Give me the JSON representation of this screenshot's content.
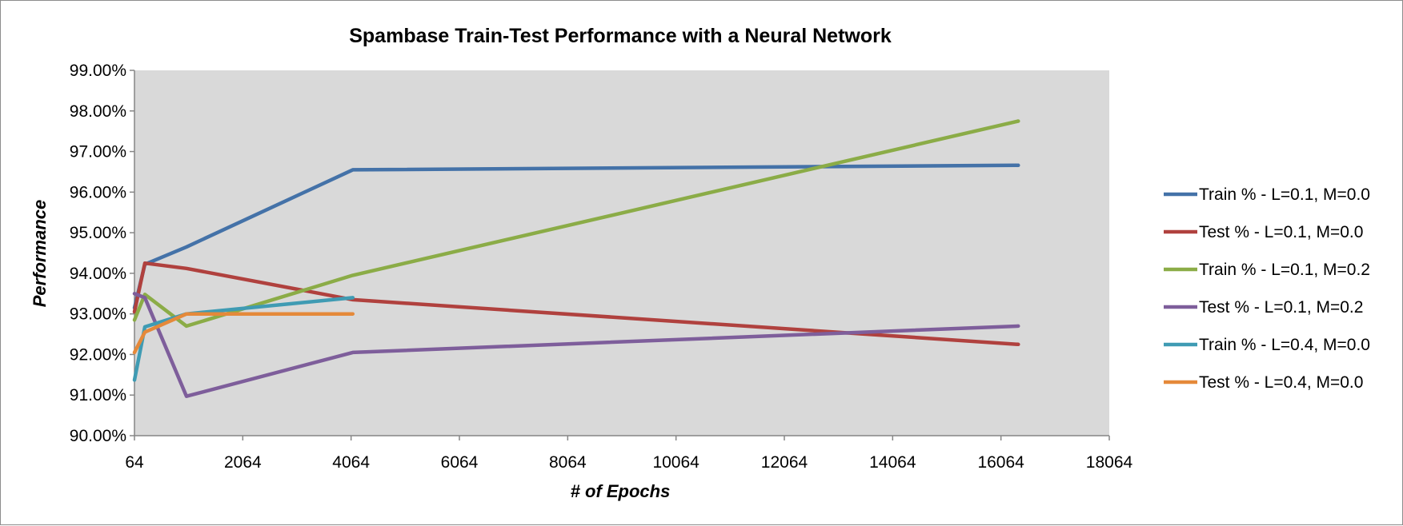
{
  "chart_data": {
    "type": "line",
    "title": "Spambase Train-Test Performance with a Neural Network",
    "xlabel": "# of Epochs",
    "ylabel": "Performance",
    "xlim": [
      64,
      18064
    ],
    "ylim": [
      0.9,
      0.99
    ],
    "xticks": [
      "64",
      "2064",
      "4064",
      "6064",
      "8064",
      "10064",
      "12064",
      "14064",
      "16064",
      "18064"
    ],
    "yticks": [
      "90.00%",
      "91.00%",
      "92.00%",
      "93.00%",
      "94.00%",
      "95.00%",
      "96.00%",
      "97.00%",
      "98.00%",
      "99.00%"
    ],
    "x": [
      64,
      256,
      1024,
      4096,
      16384
    ],
    "grid": false,
    "plot_background": "#d9d9d9",
    "legend_position": "right",
    "series": [
      {
        "name": "Train % - L=0.1, M=0.0",
        "color": "#4472a8",
        "x": [
          64,
          256,
          1024,
          4096,
          16384
        ],
        "values": [
          0.9315,
          0.9422,
          0.9465,
          0.9655,
          0.9666
        ]
      },
      {
        "name": "Test % - L=0.1, M=0.0",
        "color": "#b0413e",
        "x": [
          64,
          256,
          1024,
          4096,
          16384
        ],
        "values": [
          0.9305,
          0.9425,
          0.9412,
          0.9335,
          0.9225
        ]
      },
      {
        "name": "Train % - L=0.1, M=0.2",
        "color": "#8bac47",
        "x": [
          64,
          256,
          1024,
          4096,
          16384
        ],
        "values": [
          0.9285,
          0.9348,
          0.927,
          0.9395,
          0.9775
        ]
      },
      {
        "name": "Test % - L=0.1, M=0.2",
        "color": "#7e5e9b",
        "x": [
          64,
          256,
          1024,
          4096,
          16384
        ],
        "values": [
          0.935,
          0.934,
          0.9097,
          0.9205,
          0.927
        ]
      },
      {
        "name": "Train % - L=0.4, M=0.0",
        "color": "#3f9bb3",
        "x": [
          64,
          256,
          1024,
          4096
        ],
        "values": [
          0.9137,
          0.9268,
          0.93,
          0.934
        ]
      },
      {
        "name": "Test % - L=0.4, M=0.0",
        "color": "#e5893a",
        "x": [
          64,
          256,
          1024,
          4096
        ],
        "values": [
          0.9205,
          0.9255,
          0.93,
          0.93
        ]
      }
    ]
  }
}
